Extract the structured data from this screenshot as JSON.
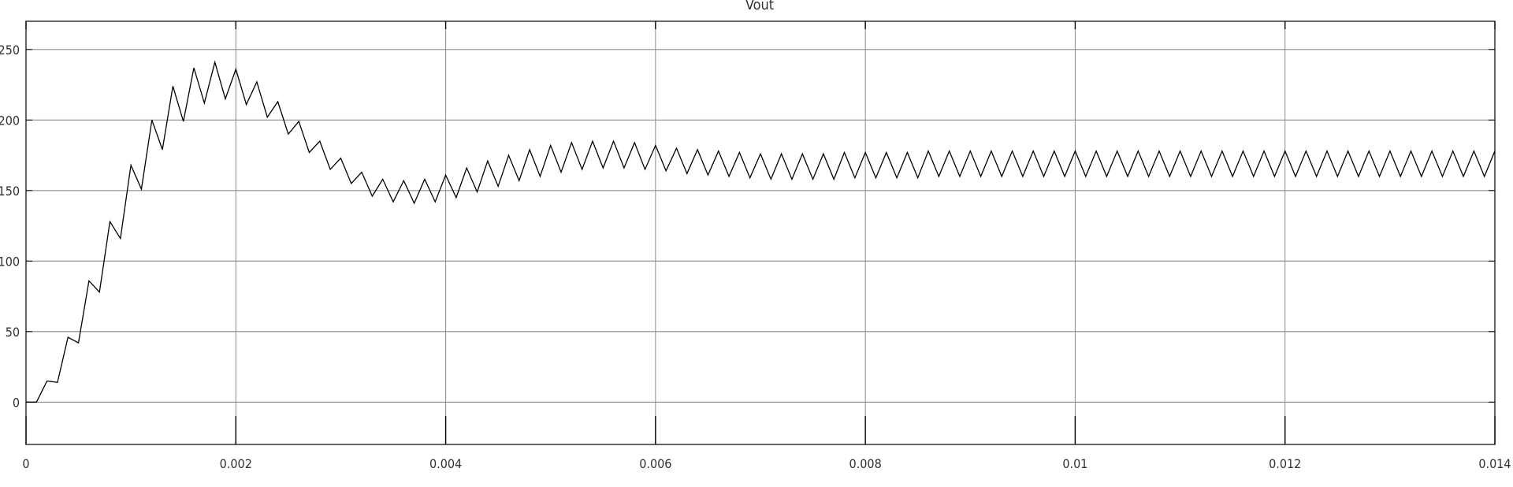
{
  "chart_data": {
    "type": "line",
    "title": "Vout",
    "xlabel": "",
    "ylabel": "",
    "xlim": [
      0,
      0.014
    ],
    "ylim": [
      -30,
      270
    ],
    "grid": true,
    "x_ticks": [
      0,
      0.002,
      0.004,
      0.006,
      0.008,
      0.01,
      0.012,
      0.014
    ],
    "x_tick_labels": [
      "0",
      "0.002",
      "0.004",
      "0.006",
      "0.008",
      "0.01",
      "0.012",
      "0.014"
    ],
    "y_ticks": [
      0,
      50,
      100,
      150,
      200,
      250
    ],
    "y_tick_labels": [
      "0",
      "50",
      "100",
      "150",
      "200",
      "250"
    ],
    "colors": {
      "line": "#000000",
      "grid": "#8c8c8c",
      "axes": "#000000"
    },
    "series": [
      {
        "x": [
          0,
          0.0001,
          0.0002,
          0.0003,
          0.0004,
          0.0005,
          0.0006,
          0.0007,
          0.0008,
          0.0009,
          0.001,
          0.0011,
          0.0012,
          0.0013,
          0.0014,
          0.0015,
          0.0016,
          0.0017,
          0.0018,
          0.0019,
          0.002,
          0.0021,
          0.0022,
          0.0023,
          0.0024,
          0.0025,
          0.0026,
          0.0027,
          0.0028,
          0.0029,
          0.003,
          0.0031,
          0.0032,
          0.0033,
          0.0034,
          0.0035,
          0.0036,
          0.0037,
          0.0038,
          0.0039,
          0.004,
          0.0041,
          0.0042,
          0.0043,
          0.0044,
          0.0045,
          0.0046,
          0.0047,
          0.0048,
          0.0049,
          0.005,
          0.0051,
          0.0052,
          0.0053,
          0.0054,
          0.0055,
          0.0056,
          0.0057,
          0.0058,
          0.0059,
          0.006,
          0.0061,
          0.0062,
          0.0063,
          0.0064,
          0.0065,
          0.0066,
          0.0067,
          0.0068,
          0.0069,
          0.007,
          0.0071,
          0.0072,
          0.0073,
          0.0074,
          0.0075,
          0.0076,
          0.0077,
          0.0078,
          0.0079,
          0.008,
          0.0081,
          0.0082,
          0.0083,
          0.0084,
          0.0085,
          0.0086,
          0.0087,
          0.0088,
          0.0089,
          0.009,
          0.0091,
          0.0092,
          0.0093,
          0.0094,
          0.0095,
          0.0096,
          0.0097,
          0.0098,
          0.0099,
          0.01,
          0.0101,
          0.0102,
          0.0103,
          0.0104,
          0.0105,
          0.0106,
          0.0107,
          0.0108,
          0.0109,
          0.011,
          0.0111,
          0.0112,
          0.0113,
          0.0114,
          0.0115,
          0.0116,
          0.0117,
          0.0118,
          0.0119,
          0.012,
          0.0121,
          0.0122,
          0.0123,
          0.0124,
          0.0125,
          0.0126,
          0.0127,
          0.0128,
          0.0129,
          0.013,
          0.0131,
          0.0132,
          0.0133,
          0.0134,
          0.0135,
          0.0136,
          0.0137,
          0.0138,
          0.0139,
          0.014
        ],
        "values": [
          0,
          0,
          15,
          14,
          46,
          42,
          86,
          78,
          128,
          116,
          168,
          151,
          200,
          179,
          224,
          199,
          237,
          212,
          241,
          215,
          236,
          211,
          227,
          202,
          213,
          190,
          199,
          177,
          185,
          165,
          173,
          155,
          163,
          146,
          158,
          142,
          157,
          141,
          158,
          142,
          161,
          145,
          166,
          149,
          171,
          153,
          175,
          157,
          179,
          160,
          182,
          163,
          184,
          165,
          185,
          166,
          185,
          166,
          184,
          165,
          182,
          164,
          180,
          162,
          179,
          161,
          178,
          160,
          177,
          159,
          176,
          158,
          176,
          158,
          176,
          158,
          176,
          158,
          177,
          159,
          177,
          159,
          177,
          159,
          177,
          159,
          178,
          160,
          178,
          160,
          178,
          160,
          178,
          160,
          178,
          160,
          178,
          160,
          178,
          160,
          178,
          160,
          178,
          160,
          178,
          160,
          178,
          160,
          178,
          160,
          178,
          160,
          178,
          160,
          178,
          160,
          178,
          160,
          178,
          160,
          178,
          160,
          178,
          160,
          178,
          160,
          178,
          160,
          178,
          160,
          178,
          160,
          178,
          160,
          178,
          160,
          178,
          160,
          178,
          160,
          178
        ]
      }
    ]
  }
}
